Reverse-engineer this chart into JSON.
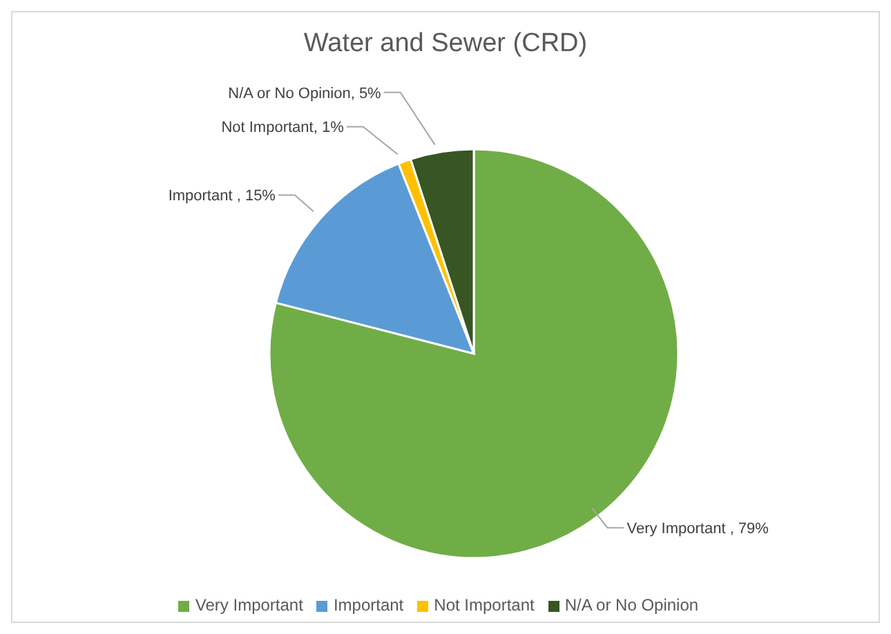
{
  "chart_data": {
    "type": "pie",
    "title": "Water and Sewer (CRD)",
    "categories": [
      "Very Important",
      "Important",
      "Not Important",
      "N/A or No Opinion"
    ],
    "values": [
      79,
      15,
      1,
      5
    ],
    "colors": [
      "#70ad47",
      "#5b9bd5",
      "#ffc000",
      "#375623"
    ],
    "value_labels": [
      "Very Important , 79%",
      "Important , 15%",
      "Not Important, 1%",
      "N/A or No Opinion, 5%"
    ],
    "legend": "bottom"
  }
}
